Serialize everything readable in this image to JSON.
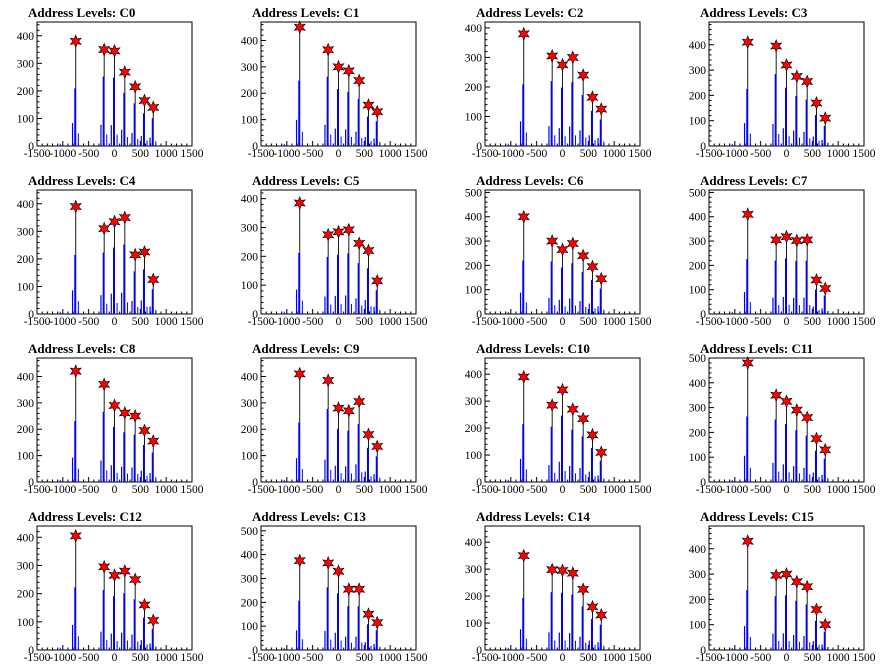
{
  "chart_data": [
    {
      "type": "bar",
      "title": "Address Levels: C0",
      "xlim": [
        -1500,
        1500
      ],
      "xticks": [
        -1500,
        -1000,
        -500,
        0,
        500,
        1000,
        1500
      ],
      "ylim": [
        0,
        450
      ],
      "yticks": [
        0,
        100,
        200,
        300,
        400
      ],
      "peaks": [
        {
          "x": -750,
          "y": 380
        },
        {
          "x": -200,
          "y": 350
        },
        {
          "x": 0,
          "y": 345
        },
        {
          "x": 200,
          "y": 268
        },
        {
          "x": 400,
          "y": 215
        },
        {
          "x": 580,
          "y": 165
        },
        {
          "x": 750,
          "y": 140
        }
      ]
    },
    {
      "type": "bar",
      "title": "Address Levels: C1",
      "xlim": [
        -1500,
        1500
      ],
      "xticks": [
        -1500,
        -1000,
        -500,
        0,
        500,
        1000,
        1500
      ],
      "ylim": [
        0,
        470
      ],
      "yticks": [
        0,
        100,
        200,
        300,
        400
      ],
      "peaks": [
        {
          "x": -750,
          "y": 450
        },
        {
          "x": -200,
          "y": 365
        },
        {
          "x": 0,
          "y": 300
        },
        {
          "x": 200,
          "y": 285
        },
        {
          "x": 400,
          "y": 248
        },
        {
          "x": 580,
          "y": 155
        },
        {
          "x": 750,
          "y": 130
        }
      ]
    },
    {
      "type": "bar",
      "title": "Address Levels: C2",
      "xlim": [
        -1500,
        1500
      ],
      "xticks": [
        -1500,
        -1000,
        -500,
        0,
        500,
        1000,
        1500
      ],
      "ylim": [
        0,
        420
      ],
      "yticks": [
        0,
        100,
        200,
        300,
        400
      ],
      "peaks": [
        {
          "x": -750,
          "y": 380
        },
        {
          "x": -200,
          "y": 305
        },
        {
          "x": 0,
          "y": 275
        },
        {
          "x": 200,
          "y": 300
        },
        {
          "x": 400,
          "y": 240
        },
        {
          "x": 580,
          "y": 165
        },
        {
          "x": 750,
          "y": 125
        }
      ]
    },
    {
      "type": "bar",
      "title": "Address Levels: C3",
      "xlim": [
        -1500,
        1500
      ],
      "xticks": [
        -1500,
        -1000,
        -500,
        0,
        500,
        1000,
        1500
      ],
      "ylim": [
        0,
        490
      ],
      "yticks": [
        0,
        100,
        200,
        300,
        400
      ],
      "peaks": [
        {
          "x": -750,
          "y": 410
        },
        {
          "x": -200,
          "y": 395
        },
        {
          "x": 0,
          "y": 320
        },
        {
          "x": 200,
          "y": 275
        },
        {
          "x": 400,
          "y": 255
        },
        {
          "x": 580,
          "y": 170
        },
        {
          "x": 750,
          "y": 110
        }
      ]
    },
    {
      "type": "bar",
      "title": "Address Levels: C4",
      "xlim": [
        -1500,
        1500
      ],
      "xticks": [
        -1500,
        -1000,
        -500,
        0,
        500,
        1000,
        1500
      ],
      "ylim": [
        0,
        450
      ],
      "yticks": [
        0,
        100,
        200,
        300,
        400
      ],
      "peaks": [
        {
          "x": -750,
          "y": 390
        },
        {
          "x": -200,
          "y": 310
        },
        {
          "x": 0,
          "y": 335
        },
        {
          "x": 200,
          "y": 350
        },
        {
          "x": 400,
          "y": 215
        },
        {
          "x": 580,
          "y": 225
        },
        {
          "x": 750,
          "y": 125
        }
      ]
    },
    {
      "type": "bar",
      "title": "Address Levels: C5",
      "xlim": [
        -1500,
        1500
      ],
      "xticks": [
        -1500,
        -1000,
        -500,
        0,
        500,
        1000,
        1500
      ],
      "ylim": [
        0,
        430
      ],
      "yticks": [
        0,
        100,
        200,
        300,
        400
      ],
      "peaks": [
        {
          "x": -750,
          "y": 385
        },
        {
          "x": -200,
          "y": 275
        },
        {
          "x": 0,
          "y": 285
        },
        {
          "x": 200,
          "y": 292
        },
        {
          "x": 400,
          "y": 245
        },
        {
          "x": 580,
          "y": 220
        },
        {
          "x": 750,
          "y": 115
        }
      ]
    },
    {
      "type": "bar",
      "title": "Address Levels: C6",
      "xlim": [
        -1500,
        1500
      ],
      "xticks": [
        -1500,
        -1000,
        -500,
        0,
        500,
        1000,
        1500
      ],
      "ylim": [
        0,
        510
      ],
      "yticks": [
        0,
        100,
        200,
        300,
        400,
        500
      ],
      "peaks": [
        {
          "x": -750,
          "y": 400
        },
        {
          "x": -200,
          "y": 300
        },
        {
          "x": 0,
          "y": 265
        },
        {
          "x": 200,
          "y": 290
        },
        {
          "x": 400,
          "y": 240
        },
        {
          "x": 580,
          "y": 195
        },
        {
          "x": 750,
          "y": 145
        }
      ]
    },
    {
      "type": "bar",
      "title": "Address Levels: C7",
      "xlim": [
        -1500,
        1500
      ],
      "xticks": [
        -1500,
        -1000,
        -500,
        0,
        500,
        1000,
        1500
      ],
      "ylim": [
        0,
        510
      ],
      "yticks": [
        0,
        100,
        200,
        300,
        400,
        500
      ],
      "peaks": [
        {
          "x": -750,
          "y": 410
        },
        {
          "x": -200,
          "y": 305
        },
        {
          "x": 0,
          "y": 318
        },
        {
          "x": 200,
          "y": 302
        },
        {
          "x": 400,
          "y": 305
        },
        {
          "x": 580,
          "y": 140
        },
        {
          "x": 750,
          "y": 105
        }
      ]
    },
    {
      "type": "bar",
      "title": "Address Levels: C8",
      "xlim": [
        -1500,
        1500
      ],
      "xticks": [
        -1500,
        -1000,
        -500,
        0,
        500,
        1000,
        1500
      ],
      "ylim": [
        0,
        470
      ],
      "yticks": [
        0,
        100,
        200,
        300,
        400
      ],
      "peaks": [
        {
          "x": -750,
          "y": 420
        },
        {
          "x": -200,
          "y": 370
        },
        {
          "x": 0,
          "y": 290
        },
        {
          "x": 200,
          "y": 262
        },
        {
          "x": 400,
          "y": 250
        },
        {
          "x": 580,
          "y": 195
        },
        {
          "x": 750,
          "y": 155
        }
      ]
    },
    {
      "type": "bar",
      "title": "Address Levels: C9",
      "xlim": [
        -1500,
        1500
      ],
      "xticks": [
        -1500,
        -1000,
        -500,
        0,
        500,
        1000,
        1500
      ],
      "ylim": [
        0,
        470
      ],
      "yticks": [
        0,
        100,
        200,
        300,
        400
      ],
      "peaks": [
        {
          "x": -750,
          "y": 410
        },
        {
          "x": -200,
          "y": 385
        },
        {
          "x": 0,
          "y": 280
        },
        {
          "x": 200,
          "y": 270
        },
        {
          "x": 400,
          "y": 305
        },
        {
          "x": 580,
          "y": 180
        },
        {
          "x": 750,
          "y": 135
        }
      ]
    },
    {
      "type": "bar",
      "title": "Address Levels: C10",
      "xlim": [
        -1500,
        1500
      ],
      "xticks": [
        -1500,
        -1000,
        -500,
        0,
        500,
        1000,
        1500
      ],
      "ylim": [
        0,
        460
      ],
      "yticks": [
        0,
        100,
        200,
        300,
        400
      ],
      "peaks": [
        {
          "x": -750,
          "y": 390
        },
        {
          "x": -200,
          "y": 285
        },
        {
          "x": 0,
          "y": 342
        },
        {
          "x": 200,
          "y": 270
        },
        {
          "x": 400,
          "y": 235
        },
        {
          "x": 580,
          "y": 175
        },
        {
          "x": 750,
          "y": 110
        }
      ]
    },
    {
      "type": "bar",
      "title": "Address Levels: C11",
      "xlim": [
        -1500,
        1500
      ],
      "xticks": [
        -1500,
        -1000,
        -500,
        0,
        500,
        1000,
        1500
      ],
      "ylim": [
        0,
        500
      ],
      "yticks": [
        0,
        100,
        200,
        300,
        400,
        500
      ],
      "peaks": [
        {
          "x": -750,
          "y": 480
        },
        {
          "x": -200,
          "y": 350
        },
        {
          "x": 0,
          "y": 325
        },
        {
          "x": 200,
          "y": 290
        },
        {
          "x": 400,
          "y": 260
        },
        {
          "x": 580,
          "y": 175
        },
        {
          "x": 750,
          "y": 130
        }
      ]
    },
    {
      "type": "bar",
      "title": "Address Levels: C12",
      "xlim": [
        -1500,
        1500
      ],
      "xticks": [
        -1500,
        -1000,
        -500,
        0,
        500,
        1000,
        1500
      ],
      "ylim": [
        0,
        440
      ],
      "yticks": [
        0,
        100,
        200,
        300,
        400
      ],
      "peaks": [
        {
          "x": -750,
          "y": 405
        },
        {
          "x": -200,
          "y": 295
        },
        {
          "x": 0,
          "y": 265
        },
        {
          "x": 200,
          "y": 280
        },
        {
          "x": 400,
          "y": 250
        },
        {
          "x": 580,
          "y": 160
        },
        {
          "x": 750,
          "y": 105
        }
      ]
    },
    {
      "type": "bar",
      "title": "Address Levels: C13",
      "xlim": [
        -1500,
        1500
      ],
      "xticks": [
        -1500,
        -1000,
        -500,
        0,
        500,
        1000,
        1500
      ],
      "ylim": [
        0,
        520
      ],
      "yticks": [
        0,
        100,
        200,
        300,
        400,
        500
      ],
      "peaks": [
        {
          "x": -750,
          "y": 375
        },
        {
          "x": -200,
          "y": 365
        },
        {
          "x": 0,
          "y": 330
        },
        {
          "x": 200,
          "y": 255
        },
        {
          "x": 400,
          "y": 255
        },
        {
          "x": 580,
          "y": 150
        },
        {
          "x": 750,
          "y": 115
        }
      ]
    },
    {
      "type": "bar",
      "title": "Address Levels: C14",
      "xlim": [
        -1500,
        1500
      ],
      "xticks": [
        -1500,
        -1000,
        -500,
        0,
        500,
        1000,
        1500
      ],
      "ylim": [
        0,
        460
      ],
      "yticks": [
        0,
        100,
        200,
        300,
        400
      ],
      "peaks": [
        {
          "x": -750,
          "y": 350
        },
        {
          "x": -200,
          "y": 298
        },
        {
          "x": 0,
          "y": 295
        },
        {
          "x": 200,
          "y": 285
        },
        {
          "x": 400,
          "y": 225
        },
        {
          "x": 580,
          "y": 160
        },
        {
          "x": 750,
          "y": 130
        }
      ]
    },
    {
      "type": "bar",
      "title": "Address Levels: C15",
      "xlim": [
        -1500,
        1500
      ],
      "xticks": [
        -1500,
        -1000,
        -500,
        0,
        500,
        1000,
        1500
      ],
      "ylim": [
        0,
        490
      ],
      "yticks": [
        0,
        100,
        200,
        300,
        400
      ],
      "peaks": [
        {
          "x": -750,
          "y": 430
        },
        {
          "x": -200,
          "y": 295
        },
        {
          "x": 0,
          "y": 300
        },
        {
          "x": 200,
          "y": 270
        },
        {
          "x": 400,
          "y": 250
        },
        {
          "x": 580,
          "y": 160
        },
        {
          "x": 750,
          "y": 100
        }
      ]
    }
  ],
  "colors": {
    "bar_tall": "#000000",
    "bar_body": "#0000ff",
    "marker": "#ff0000"
  },
  "marker_icon": "star-marker-icon"
}
